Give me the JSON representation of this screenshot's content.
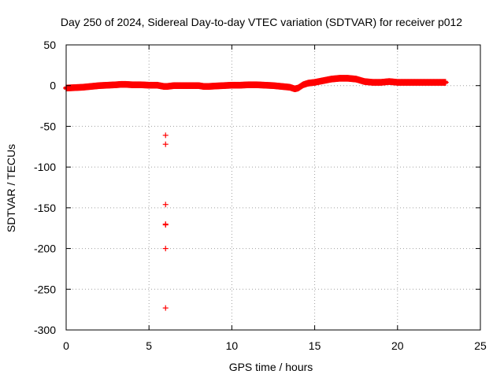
{
  "chart_data": {
    "type": "scatter",
    "title": "Day 250 of 2024, Sidereal Day-to-day VTEC variation (SDTVAR) for receiver p012",
    "xlabel": "GPS time / hours",
    "ylabel": "SDTVAR / TECUs",
    "xlim": [
      0,
      25
    ],
    "ylim": [
      -300,
      50
    ],
    "xticks": [
      0,
      5,
      10,
      15,
      20,
      25
    ],
    "yticks": [
      50,
      0,
      -50,
      -100,
      -150,
      -200,
      -250,
      -300
    ],
    "grid": true,
    "marker": "plus",
    "color": "#ff0000",
    "series": [
      {
        "name": "SDTVAR",
        "x": [
          0.0,
          0.5,
          1.0,
          1.5,
          2.0,
          2.5,
          3.0,
          3.3,
          3.6,
          4.0,
          4.5,
          5.0,
          5.5,
          5.9,
          6.1,
          6.5,
          7.0,
          7.5,
          8.0,
          8.3,
          8.6,
          9.0,
          9.5,
          10.0,
          10.5,
          11.0,
          11.5,
          12.0,
          12.5,
          13.0,
          13.5,
          13.8,
          14.0,
          14.3,
          14.6,
          15.0,
          15.5,
          16.0,
          16.5,
          17.0,
          17.5,
          18.0,
          18.5,
          19.0,
          19.5,
          20.0,
          20.5,
          21.0,
          21.5,
          22.0,
          22.5,
          22.9
        ],
        "y": [
          -3,
          -2.5,
          -2,
          -1,
          0,
          0.5,
          1,
          1.5,
          1.5,
          1,
          1,
          0.5,
          0.5,
          -1,
          -1,
          0,
          0,
          0,
          0,
          -1,
          -1,
          -0.5,
          0,
          0.5,
          0.5,
          1,
          1,
          0.5,
          0,
          -1,
          -2,
          -4,
          -3,
          1,
          3,
          4,
          6,
          8,
          9,
          9,
          8,
          5,
          4,
          4,
          5,
          4,
          4,
          4,
          4,
          4,
          4,
          4
        ],
        "outliers": {
          "x": [
            6.0,
            6.0,
            6.0,
            6.0,
            6.0,
            6.0,
            6.0
          ],
          "y": [
            -61,
            -72,
            -146,
            -170,
            -171,
            -200,
            -273
          ]
        }
      }
    ]
  }
}
